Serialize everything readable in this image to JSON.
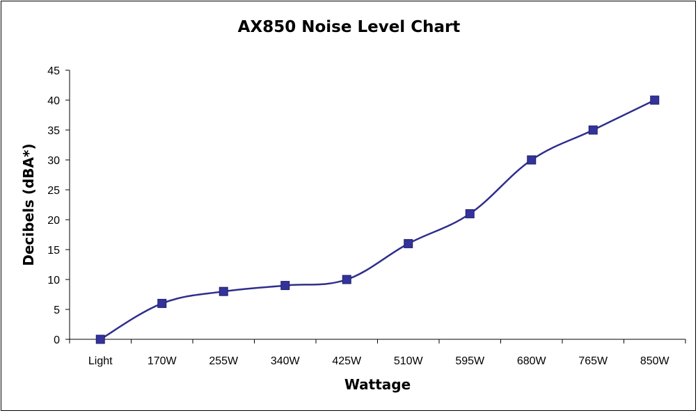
{
  "chart_data": {
    "type": "line",
    "title": "AX850 Noise Level Chart",
    "xlabel": "Wattage",
    "ylabel": "Decibels (dBA*)",
    "categories": [
      "Light",
      "170W",
      "255W",
      "340W",
      "425W",
      "510W",
      "595W",
      "680W",
      "765W",
      "850W"
    ],
    "series": [
      {
        "values": [
          0,
          6,
          8,
          9,
          10,
          16,
          21,
          30,
          35,
          40
        ]
      }
    ],
    "ylim": [
      0,
      45
    ],
    "yticks": [
      0,
      5,
      10,
      15,
      20,
      25,
      30,
      35,
      40,
      45
    ],
    "grid": false,
    "legend": "none",
    "colors": {
      "line": "#2e2e8c",
      "marker": "#33339a",
      "axis": "#000000"
    }
  }
}
